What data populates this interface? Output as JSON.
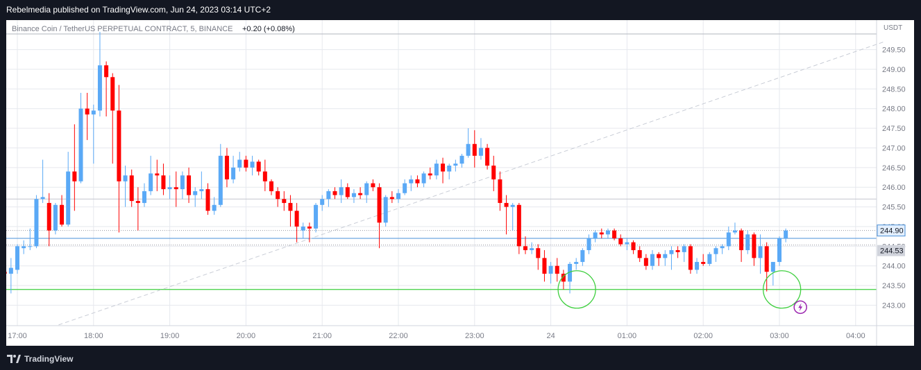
{
  "header": {
    "published": "Rebelmedia published on TradingView.com, Jun 24, 2023 03:14 UTC+2"
  },
  "footer": {
    "brand": "TradingView"
  },
  "colors": {
    "up": "#5aa9f6",
    "down": "#ff0000",
    "grid": "#e6e8ee",
    "support": "#3ecf3e",
    "price_line": "#4a90d9",
    "trend": "#c9cdd6",
    "axis_text": "#787b86",
    "bolt": "#9c27b0"
  },
  "chart_data": {
    "type": "candlestick",
    "title": "Binance Coin / TetherUS PERPETUAL CONTRACT, 5, BINANCE",
    "change": "+0.20 (+0.08%)",
    "currency": "USDT",
    "y_ticks": [
      "249.50",
      "249.00",
      "248.50",
      "248.00",
      "247.50",
      "247.00",
      "246.50",
      "246.00",
      "245.50",
      "245.00",
      "244.50",
      "244.00",
      "243.50",
      "243.00"
    ],
    "x_ticks": [
      {
        "label": "17:00",
        "t": 0
      },
      {
        "label": "18:00",
        "t": 12
      },
      {
        "label": "19:00",
        "t": 24
      },
      {
        "label": "20:00",
        "t": 36
      },
      {
        "label": "21:00",
        "t": 48
      },
      {
        "label": "22:00",
        "t": 60
      },
      {
        "label": "23:00",
        "t": 72
      },
      {
        "label": "24",
        "t": 84
      },
      {
        "label": "01:00",
        "t": 96
      },
      {
        "label": "02:00",
        "t": 108
      },
      {
        "label": "03:00",
        "t": 120
      },
      {
        "label": "04:00",
        "t": 132
      }
    ],
    "ylim": [
      242.48,
      250.25
    ],
    "last_price": {
      "value": 244.9,
      "label": "244.90"
    },
    "marker_price": {
      "value": 244.53,
      "label": "244.53"
    },
    "support_level": 243.4,
    "h_levels": [
      245.7,
      244.53
    ],
    "trendline": [
      [
        6.5,
        242.5
      ],
      [
        136.5,
        249.7
      ]
    ],
    "circles": [
      [
        88.1,
        243.4
      ],
      [
        120.4,
        243.4
      ]
    ],
    "bolt_at": [
      123.3,
      242.95
    ],
    "grid": true,
    "candles": [
      [
        -2,
        243.85,
        244.05,
        243.7,
        243.8
      ],
      [
        -1,
        243.8,
        244.2,
        243.3,
        243.95
      ],
      [
        0,
        243.9,
        244.55,
        243.8,
        244.5
      ],
      [
        1,
        244.45,
        244.65,
        244.3,
        244.5
      ],
      [
        2,
        244.5,
        244.95,
        244.4,
        244.5
      ],
      [
        3,
        244.5,
        245.8,
        244.45,
        245.7
      ],
      [
        4,
        245.7,
        246.7,
        245.6,
        245.75
      ],
      [
        5,
        245.6,
        245.85,
        244.5,
        244.9
      ],
      [
        6,
        244.9,
        245.6,
        244.8,
        245.55
      ],
      [
        7,
        245.55,
        245.8,
        245.0,
        245.05
      ],
      [
        8,
        245.05,
        246.9,
        245.0,
        246.4
      ],
      [
        9,
        246.4,
        247.6,
        245.4,
        246.15
      ],
      [
        10,
        246.15,
        248.4,
        246.1,
        248.0
      ],
      [
        11,
        248.0,
        248.4,
        247.2,
        247.85
      ],
      [
        12,
        247.85,
        248.1,
        246.6,
        247.95
      ],
      [
        13,
        247.95,
        249.95,
        247.8,
        249.1
      ],
      [
        14,
        249.1,
        249.2,
        247.8,
        248.8
      ],
      [
        15,
        248.8,
        248.9,
        246.6,
        247.95
      ],
      [
        16,
        247.95,
        248.6,
        244.85,
        246.15
      ],
      [
        17,
        246.15,
        246.55,
        245.5,
        246.3
      ],
      [
        18,
        246.3,
        246.45,
        245.5,
        245.65
      ],
      [
        19,
        245.65,
        246.0,
        244.9,
        245.6
      ],
      [
        20,
        245.6,
        246.1,
        245.5,
        245.9
      ],
      [
        21,
        245.9,
        246.8,
        245.8,
        246.35
      ],
      [
        22,
        246.35,
        246.7,
        245.9,
        246.3
      ],
      [
        23,
        246.3,
        246.6,
        245.8,
        245.95
      ],
      [
        24,
        245.95,
        246.3,
        245.7,
        246.0
      ],
      [
        25,
        246.0,
        246.4,
        245.5,
        245.95
      ],
      [
        26,
        245.95,
        246.4,
        245.7,
        246.3
      ],
      [
        27,
        246.3,
        246.5,
        245.6,
        245.8
      ],
      [
        28,
        245.8,
        246.0,
        245.5,
        245.9
      ],
      [
        29,
        245.9,
        246.4,
        245.7,
        245.95
      ],
      [
        30,
        245.95,
        246.1,
        245.3,
        245.4
      ],
      [
        31,
        245.4,
        245.75,
        245.3,
        245.55
      ],
      [
        32,
        245.55,
        247.1,
        245.5,
        246.8
      ],
      [
        33,
        246.8,
        247.0,
        246.0,
        246.2
      ],
      [
        34,
        246.2,
        246.8,
        246.1,
        246.5
      ],
      [
        35,
        246.5,
        246.9,
        246.4,
        246.7
      ],
      [
        36,
        246.7,
        246.8,
        246.4,
        246.5
      ],
      [
        37,
        246.5,
        246.8,
        246.3,
        246.65
      ],
      [
        38,
        246.65,
        246.7,
        246.3,
        246.4
      ],
      [
        39,
        246.4,
        246.7,
        245.9,
        246.15
      ],
      [
        40,
        246.15,
        246.2,
        245.8,
        245.9
      ],
      [
        41,
        245.9,
        246.0,
        245.5,
        245.7
      ],
      [
        42,
        245.7,
        245.9,
        245.4,
        245.6
      ],
      [
        43,
        245.6,
        245.8,
        245.0,
        245.4
      ],
      [
        44,
        245.4,
        245.6,
        244.6,
        245.0
      ],
      [
        45,
        244.9,
        245.1,
        244.7,
        245.0
      ],
      [
        46,
        245.0,
        245.1,
        244.6,
        244.95
      ],
      [
        47,
        244.95,
        245.6,
        244.85,
        245.55
      ],
      [
        48,
        245.55,
        245.8,
        245.4,
        245.7
      ],
      [
        49,
        245.7,
        245.95,
        245.5,
        245.9
      ],
      [
        50,
        245.9,
        246.0,
        245.7,
        245.8
      ],
      [
        51,
        245.8,
        246.2,
        245.6,
        246.0
      ],
      [
        52,
        246.0,
        246.1,
        245.7,
        245.75
      ],
      [
        53,
        245.75,
        245.95,
        245.6,
        245.85
      ],
      [
        54,
        245.85,
        246.0,
        245.7,
        245.8
      ],
      [
        55,
        245.8,
        246.15,
        245.6,
        246.1
      ],
      [
        56,
        246.1,
        246.2,
        245.9,
        246.0
      ],
      [
        57,
        246.0,
        246.1,
        244.45,
        245.1
      ],
      [
        58,
        245.1,
        245.8,
        245.0,
        245.75
      ],
      [
        59,
        245.75,
        245.9,
        245.6,
        245.7
      ],
      [
        60,
        245.7,
        245.95,
        245.6,
        245.85
      ],
      [
        61,
        245.85,
        246.2,
        245.8,
        246.1
      ],
      [
        62,
        246.1,
        246.3,
        245.9,
        246.2
      ],
      [
        63,
        246.2,
        246.3,
        246.0,
        246.1
      ],
      [
        64,
        246.1,
        246.4,
        246.0,
        246.35
      ],
      [
        65,
        246.35,
        246.5,
        246.2,
        246.3
      ],
      [
        66,
        246.3,
        246.7,
        246.2,
        246.6
      ],
      [
        67,
        246.6,
        246.75,
        246.1,
        246.4
      ],
      [
        68,
        246.4,
        246.6,
        246.2,
        246.55
      ],
      [
        69,
        246.55,
        246.7,
        246.4,
        246.6
      ],
      [
        70,
        246.6,
        246.85,
        246.5,
        246.8
      ],
      [
        71,
        246.8,
        247.5,
        246.75,
        247.1
      ],
      [
        72,
        247.1,
        247.45,
        246.5,
        246.8
      ],
      [
        73,
        246.8,
        247.25,
        246.7,
        247.0
      ],
      [
        74,
        247.0,
        247.1,
        246.45,
        246.55
      ],
      [
        75,
        246.55,
        246.8,
        245.9,
        246.2
      ],
      [
        76,
        246.2,
        246.4,
        245.4,
        245.6
      ],
      [
        77,
        245.6,
        245.8,
        244.8,
        245.5
      ],
      [
        78,
        245.5,
        245.6,
        244.9,
        245.55
      ],
      [
        79,
        245.55,
        245.6,
        244.3,
        244.5
      ],
      [
        80,
        244.5,
        244.75,
        244.3,
        244.4
      ],
      [
        81,
        244.4,
        244.6,
        244.3,
        244.45
      ],
      [
        82,
        244.45,
        244.55,
        243.9,
        244.2
      ],
      [
        83,
        244.2,
        244.4,
        243.6,
        243.8
      ],
      [
        84,
        243.8,
        244.1,
        243.55,
        244.0
      ],
      [
        85,
        244.0,
        244.2,
        243.6,
        243.8
      ],
      [
        86,
        243.8,
        243.9,
        243.4,
        243.6
      ],
      [
        87,
        243.6,
        244.1,
        243.3,
        244.05
      ],
      [
        88,
        244.05,
        244.2,
        243.9,
        244.1
      ],
      [
        89,
        244.1,
        244.45,
        244.0,
        244.4
      ],
      [
        90,
        244.4,
        244.8,
        244.3,
        244.7
      ],
      [
        91,
        244.7,
        244.9,
        244.6,
        244.85
      ],
      [
        92,
        244.85,
        244.95,
        244.7,
        244.8
      ],
      [
        93,
        244.8,
        244.95,
        244.7,
        244.9
      ],
      [
        94,
        244.9,
        244.95,
        244.65,
        244.7
      ],
      [
        95,
        244.7,
        244.8,
        244.5,
        244.55
      ],
      [
        96,
        244.55,
        244.7,
        244.4,
        244.6
      ],
      [
        97,
        244.6,
        244.65,
        244.3,
        244.4
      ],
      [
        98,
        244.4,
        244.5,
        244.1,
        244.2
      ],
      [
        99,
        244.2,
        244.3,
        243.9,
        244.0
      ],
      [
        100,
        244.0,
        244.4,
        243.9,
        244.3
      ],
      [
        101,
        244.3,
        244.35,
        244.0,
        244.2
      ],
      [
        102,
        244.2,
        244.4,
        244.0,
        244.3
      ],
      [
        103,
        244.3,
        244.5,
        243.9,
        244.4
      ],
      [
        104,
        244.4,
        244.5,
        244.2,
        244.35
      ],
      [
        105,
        244.35,
        244.55,
        244.1,
        244.5
      ],
      [
        106,
        244.5,
        244.55,
        243.8,
        243.9
      ],
      [
        107,
        243.9,
        244.2,
        243.8,
        244.1
      ],
      [
        108,
        244.1,
        244.3,
        244.0,
        244.05
      ],
      [
        109,
        244.05,
        244.35,
        244.0,
        244.3
      ],
      [
        110,
        244.3,
        244.5,
        244.1,
        244.45
      ],
      [
        111,
        244.45,
        244.55,
        244.3,
        244.5
      ],
      [
        112,
        244.5,
        245.0,
        244.4,
        244.85
      ],
      [
        113,
        244.85,
        245.1,
        244.8,
        244.9
      ],
      [
        114,
        244.9,
        244.95,
        244.1,
        244.4
      ],
      [
        115,
        244.4,
        244.9,
        244.3,
        244.8
      ],
      [
        116,
        244.8,
        244.85,
        244.0,
        244.2
      ],
      [
        117,
        244.2,
        244.8,
        243.8,
        244.5
      ],
      [
        118,
        244.5,
        244.6,
        243.35,
        243.85
      ],
      [
        119,
        243.85,
        244.1,
        243.5,
        244.1
      ],
      [
        120,
        244.1,
        244.75,
        244.0,
        244.7
      ],
      [
        121,
        244.7,
        244.95,
        244.6,
        244.9
      ]
    ]
  }
}
